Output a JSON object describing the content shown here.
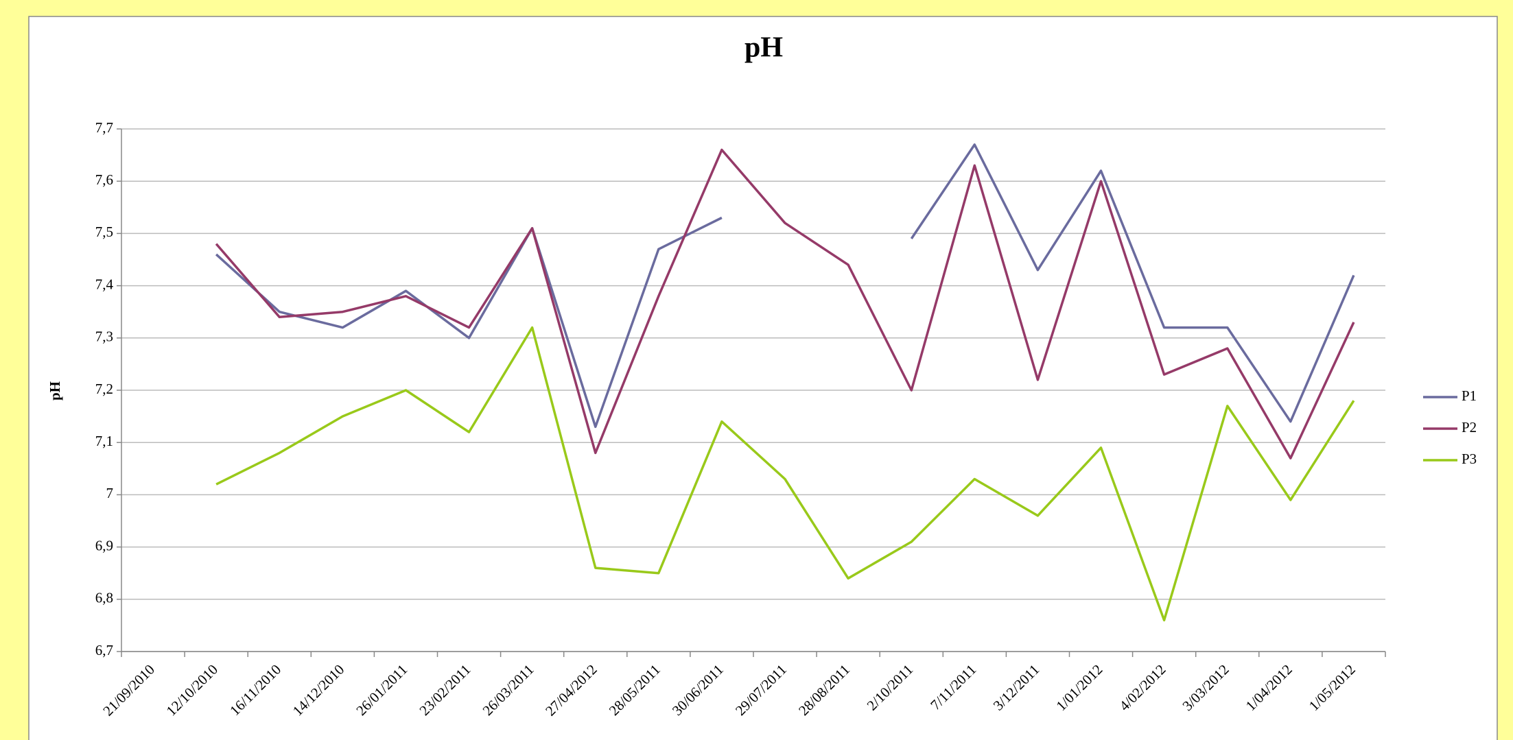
{
  "chart_data": {
    "type": "line",
    "title": "pH",
    "ylabel": "pH",
    "categories": [
      "21/09/2010",
      "12/10/2010",
      "16/11/2010",
      "14/12/2010",
      "26/01/2011",
      "23/02/2011",
      "26/03/2011",
      "27/04/2012",
      "28/05/2011",
      "30/06/2011",
      "29/07/2011",
      "28/08/2011",
      "2/10/2011",
      "7/11/2011",
      "3/12/2011",
      "1/01/2012",
      "4/02/2012",
      "3/03/2012",
      "1/04/2012",
      "1/05/2012"
    ],
    "series": [
      {
        "name": "P1",
        "color": "#6a6b9e",
        "values": [
          null,
          7.46,
          7.35,
          7.32,
          7.39,
          7.3,
          7.51,
          7.13,
          7.47,
          7.53,
          null,
          null,
          7.49,
          7.67,
          7.43,
          7.62,
          7.32,
          7.32,
          7.14,
          7.42
        ]
      },
      {
        "name": "P2",
        "color": "#953a68",
        "values": [
          null,
          7.48,
          7.34,
          7.35,
          7.38,
          7.32,
          7.51,
          7.08,
          7.38,
          7.66,
          7.52,
          7.44,
          7.2,
          7.63,
          7.22,
          7.6,
          7.23,
          7.28,
          7.07,
          7.33
        ]
      },
      {
        "name": "P3",
        "color": "#99c91a",
        "values": [
          null,
          7.02,
          7.08,
          7.15,
          7.2,
          7.12,
          7.32,
          6.86,
          6.85,
          7.14,
          7.03,
          6.84,
          6.91,
          7.03,
          6.96,
          7.09,
          6.76,
          7.17,
          6.99,
          7.18
        ]
      }
    ],
    "ylim": [
      6.7,
      7.7
    ],
    "yticks": [
      {
        "value": 6.7,
        "label": "6,7"
      },
      {
        "value": 6.8,
        "label": "6,8"
      },
      {
        "value": 6.9,
        "label": "6,9"
      },
      7,
      {
        "value": 7.1,
        "label": "7,1"
      },
      {
        "value": 7.2,
        "label": "7,2"
      },
      {
        "value": 7.3,
        "label": "7,3"
      },
      {
        "value": 7.4,
        "label": "7,4"
      },
      {
        "value": 7.5,
        "label": "7,5"
      },
      {
        "value": 7.6,
        "label": "7,6"
      },
      {
        "value": 7.7,
        "label": "7,7"
      }
    ],
    "grid": true,
    "legend": "right"
  }
}
